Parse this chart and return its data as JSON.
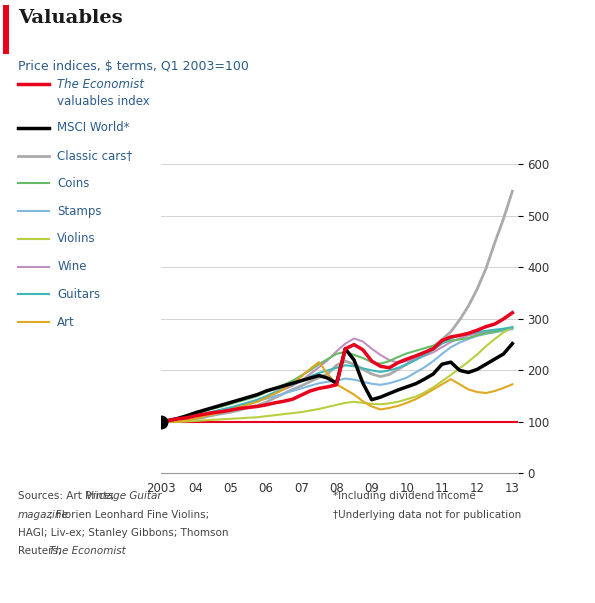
{
  "title": "Valuables",
  "subtitle": "Price indices, $ terms, Q1 2003=100",
  "title_color": "#2b5c8a",
  "background_color": "#ffffff",
  "accent_color": "#e8001c",
  "years": [
    2003.0,
    2003.25,
    2003.5,
    2003.75,
    2004.0,
    2004.25,
    2004.5,
    2004.75,
    2005.0,
    2005.25,
    2005.5,
    2005.75,
    2006.0,
    2006.25,
    2006.5,
    2006.75,
    2007.0,
    2007.25,
    2007.5,
    2007.75,
    2008.0,
    2008.25,
    2008.5,
    2008.75,
    2009.0,
    2009.25,
    2009.5,
    2009.75,
    2010.0,
    2010.25,
    2010.5,
    2010.75,
    2011.0,
    2011.25,
    2011.5,
    2011.75,
    2012.0,
    2012.25,
    2012.5,
    2012.75,
    2013.0
  ],
  "economist": [
    100,
    103,
    106,
    108,
    112,
    115,
    118,
    120,
    123,
    126,
    128,
    130,
    133,
    137,
    140,
    144,
    152,
    160,
    165,
    168,
    172,
    242,
    250,
    240,
    218,
    208,
    205,
    215,
    222,
    228,
    235,
    242,
    258,
    265,
    268,
    272,
    278,
    285,
    290,
    300,
    312
  ],
  "msci": [
    100,
    103,
    107,
    112,
    118,
    123,
    128,
    133,
    138,
    143,
    148,
    153,
    160,
    165,
    170,
    175,
    180,
    185,
    190,
    185,
    175,
    242,
    220,
    175,
    143,
    148,
    155,
    162,
    168,
    174,
    183,
    193,
    212,
    216,
    200,
    196,
    202,
    212,
    222,
    232,
    252
  ],
  "classic_cars": [
    100,
    101,
    102,
    103,
    106,
    109,
    113,
    116,
    119,
    123,
    128,
    132,
    138,
    147,
    155,
    163,
    170,
    178,
    186,
    193,
    210,
    218,
    212,
    202,
    193,
    188,
    192,
    202,
    212,
    222,
    233,
    246,
    260,
    275,
    298,
    325,
    358,
    398,
    448,
    495,
    548
  ],
  "coins": [
    100,
    103,
    106,
    110,
    116,
    121,
    126,
    130,
    135,
    140,
    145,
    150,
    158,
    165,
    172,
    180,
    190,
    200,
    212,
    222,
    232,
    236,
    230,
    224,
    216,
    213,
    218,
    226,
    233,
    238,
    243,
    248,
    253,
    258,
    260,
    263,
    268,
    272,
    275,
    280,
    283
  ],
  "stamps": [
    100,
    102,
    105,
    108,
    112,
    116,
    120,
    124,
    128,
    132,
    136,
    140,
    145,
    150,
    155,
    160,
    165,
    170,
    175,
    178,
    180,
    184,
    182,
    178,
    174,
    172,
    175,
    180,
    186,
    196,
    206,
    218,
    232,
    245,
    254,
    261,
    267,
    271,
    274,
    277,
    280
  ],
  "violins": [
    100,
    100,
    100,
    101,
    102,
    103,
    104,
    105,
    106,
    107,
    108,
    109,
    111,
    113,
    115,
    117,
    119,
    122,
    125,
    129,
    133,
    137,
    139,
    137,
    135,
    134,
    136,
    139,
    144,
    149,
    157,
    167,
    179,
    191,
    204,
    217,
    231,
    247,
    261,
    274,
    284
  ],
  "wine": [
    100,
    102,
    104,
    107,
    110,
    113,
    116,
    120,
    125,
    130,
    135,
    140,
    148,
    155,
    163,
    170,
    180,
    193,
    206,
    220,
    237,
    252,
    262,
    256,
    242,
    230,
    220,
    215,
    218,
    222,
    228,
    235,
    245,
    255,
    262,
    268,
    271,
    274,
    277,
    279,
    281
  ],
  "guitars": [
    100,
    102,
    105,
    108,
    112,
    116,
    120,
    124,
    128,
    133,
    138,
    143,
    150,
    158,
    165,
    172,
    180,
    188,
    195,
    200,
    205,
    210,
    208,
    204,
    200,
    197,
    200,
    205,
    212,
    220,
    230,
    240,
    252,
    262,
    268,
    271,
    274,
    277,
    279,
    281,
    284
  ],
  "art": [
    100,
    100,
    102,
    104,
    107,
    111,
    115,
    119,
    124,
    129,
    134,
    139,
    147,
    155,
    164,
    174,
    188,
    203,
    216,
    193,
    173,
    163,
    153,
    140,
    130,
    124,
    127,
    131,
    137,
    144,
    153,
    163,
    173,
    183,
    173,
    163,
    158,
    156,
    160,
    166,
    173
  ],
  "series_colors": {
    "economist": "#e8001c",
    "msci": "#000000",
    "classic_cars": "#aaaaaa",
    "coins": "#66bb66",
    "stamps": "#80b8e0",
    "violins": "#b8d040",
    "wine": "#c090c0",
    "guitars": "#40b8b8",
    "art": "#e0a820"
  },
  "series_widths": {
    "economist": 2.5,
    "msci": 2.5,
    "classic_cars": 2.0,
    "coins": 1.5,
    "stamps": 1.5,
    "violins": 1.5,
    "wine": 1.5,
    "guitars": 1.5,
    "art": 1.5
  },
  "ylim": [
    0,
    650
  ],
  "yticks": [
    0,
    100,
    200,
    300,
    400,
    500,
    600
  ],
  "xtick_labels": [
    "2003",
    "04",
    "05",
    "06",
    "07",
    "08",
    "09",
    "10",
    "11",
    "12",
    "13"
  ],
  "xtick_positions": [
    2003,
    2004,
    2005,
    2006,
    2007,
    2008,
    2009,
    2010,
    2011,
    2012,
    2013
  ],
  "legend_entries": [
    {
      "italic": "The Economist",
      "normal": "valuables index",
      "two_lines": true,
      "color": "#e8001c",
      "lw": 2.5
    },
    {
      "italic": "",
      "normal": "MSCI World*",
      "two_lines": false,
      "color": "#000000",
      "lw": 2.5
    },
    {
      "italic": "",
      "normal": "Classic cars†",
      "two_lines": false,
      "color": "#aaaaaa",
      "lw": 2.0
    },
    {
      "italic": "",
      "normal": "Coins",
      "two_lines": false,
      "color": "#66bb66",
      "lw": 1.5
    },
    {
      "italic": "",
      "normal": "Stamps",
      "two_lines": false,
      "color": "#80b8e0",
      "lw": 1.5
    },
    {
      "italic": "",
      "normal": "Violins",
      "two_lines": false,
      "color": "#b8d040",
      "lw": 1.5
    },
    {
      "italic": "",
      "normal": "Wine",
      "two_lines": false,
      "color": "#c090c0",
      "lw": 1.5
    },
    {
      "italic": "",
      "normal": "Guitars",
      "two_lines": false,
      "color": "#40b8b8",
      "lw": 1.5
    },
    {
      "italic": "",
      "normal": "Art",
      "two_lines": false,
      "color": "#e0a820",
      "lw": 1.5
    }
  ]
}
